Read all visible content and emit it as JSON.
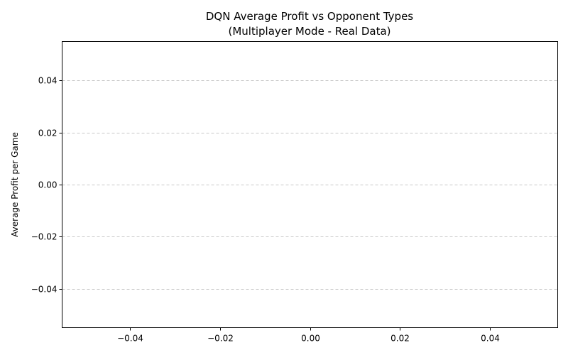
{
  "chart_data": {
    "type": "bar",
    "title_line1": "DQN Average Profit vs Opponent Types",
    "title_line2": "(Multiplayer Mode - Real Data)",
    "xlabel": "",
    "ylabel": "Average Profit per Game",
    "categories": [],
    "values": [],
    "xlim": [
      -0.055,
      0.055
    ],
    "ylim": [
      -0.055,
      0.055
    ],
    "x_ticks": [
      -0.04,
      -0.02,
      0.0,
      0.02,
      0.04
    ],
    "x_tick_labels": [
      "−0.04",
      "−0.02",
      "0.00",
      "0.02",
      "0.04"
    ],
    "y_ticks": [
      -0.04,
      -0.02,
      0.0,
      0.02,
      0.04
    ],
    "y_tick_labels": [
      "−0.04",
      "−0.02",
      "0.00",
      "0.02",
      "0.04"
    ],
    "grid": "y",
    "grid_style": "dashed",
    "grid_color": "#c8c8c8"
  }
}
